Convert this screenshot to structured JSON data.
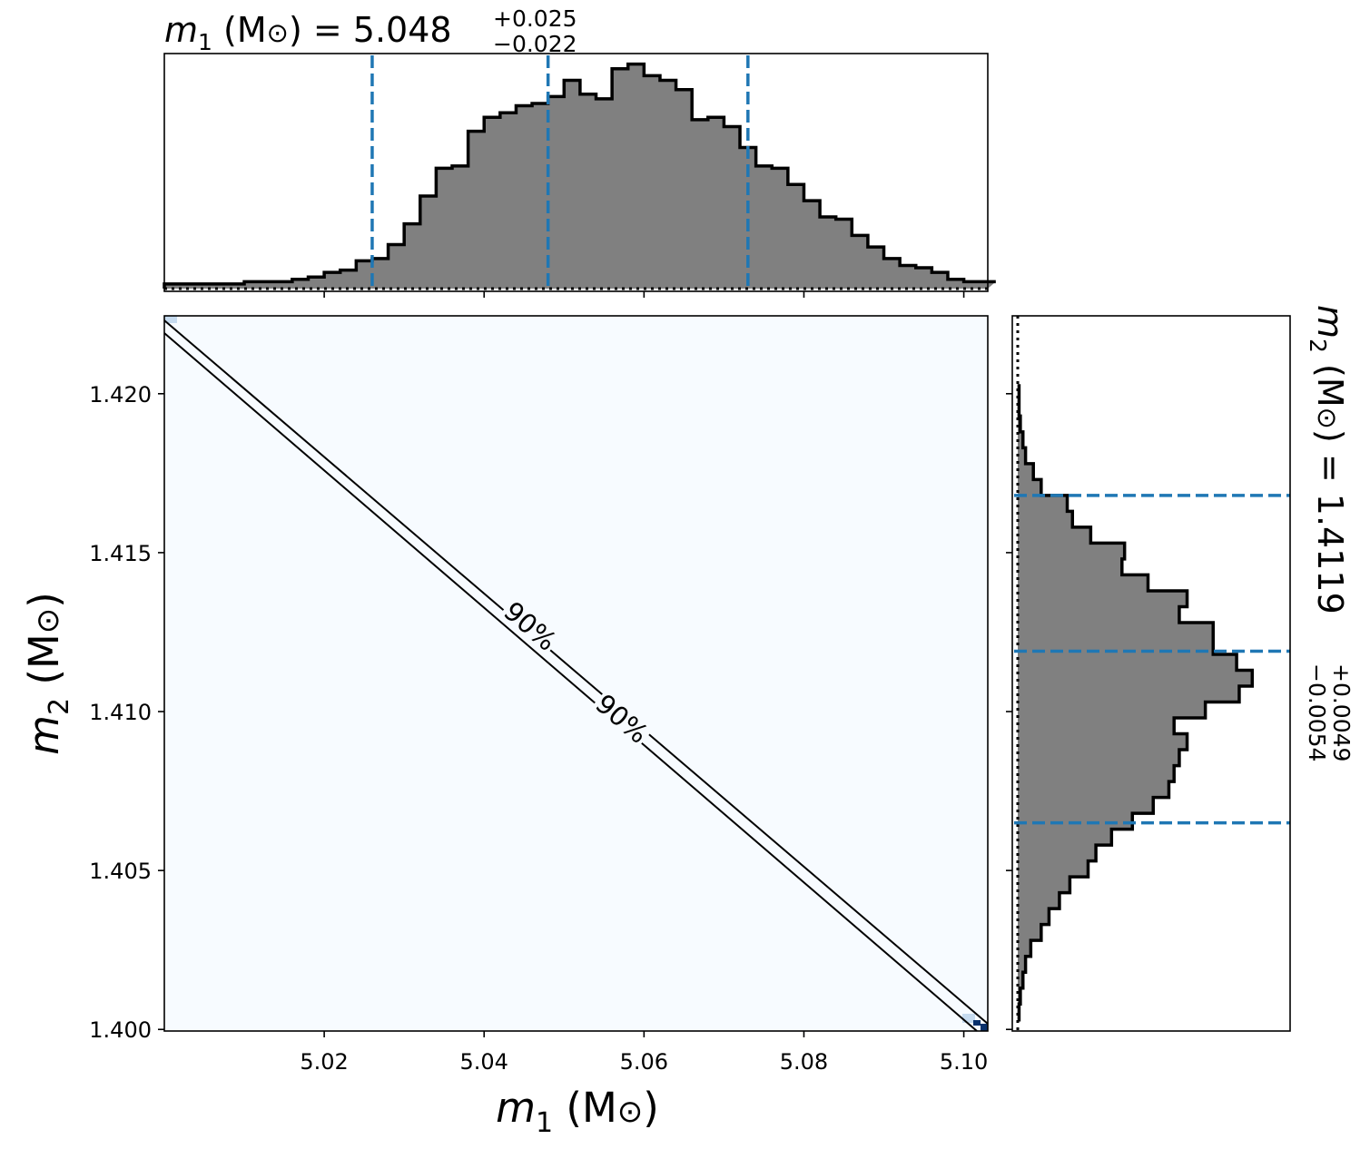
{
  "chart_data": [
    {
      "type": "area",
      "panel": "m1-marginal",
      "title": {
        "symbol": "m",
        "sub": "1",
        "unit": " (M",
        "unit_sym": "⊙",
        "close": ")",
        "eq": " = 5.048",
        "plus": "+0.025",
        "minus": "−0.022"
      },
      "xlim": [
        5.0,
        5.103
      ],
      "bins_start": 5.0,
      "bin_width": 0.002,
      "values": [
        2,
        2,
        2,
        2,
        2,
        3,
        3,
        3,
        4,
        5,
        7,
        8,
        12,
        13,
        19,
        28,
        40,
        52,
        53,
        68,
        74,
        76,
        79,
        80,
        83,
        90,
        84,
        82,
        95,
        97,
        92,
        90,
        86,
        73,
        74,
        70,
        61,
        53,
        52,
        45,
        38,
        31,
        30,
        23,
        18,
        13,
        10,
        9,
        7,
        4,
        3,
        3
      ],
      "quantiles": [
        5.026,
        5.048,
        5.073
      ],
      "ymax": 100
    },
    {
      "type": "area",
      "panel": "m2-marginal",
      "title": {
        "symbol": "m",
        "sub": "2",
        "unit": " (M",
        "unit_sym": "⊙",
        "close": ")",
        "eq": " = 1.4119",
        "plus": "+0.0049",
        "minus": "−0.0054"
      },
      "ylim": [
        1.39995,
        1.42245
      ],
      "bins_start": 1.4003,
      "bin_width": 0.0005,
      "values": [
        0.5,
        1,
        2,
        3,
        5,
        9,
        12,
        16,
        20,
        27,
        30,
        36,
        44,
        52,
        58,
        60,
        62,
        65,
        60,
        72,
        85,
        90,
        84,
        75,
        75,
        62,
        65,
        50,
        40,
        41,
        28,
        21,
        19,
        9,
        6,
        3,
        2,
        1,
        0.5,
        0.5
      ],
      "quantiles": [
        1.4065,
        1.4119,
        1.4168
      ],
      "xmax": 100
    },
    {
      "type": "heatmap",
      "panel": "joint",
      "xlabel": {
        "symbol": "m",
        "sub": "1",
        "unit": " (M",
        "unit_sym": "⊙",
        "close": ")"
      },
      "ylabel": {
        "symbol": "m",
        "sub": "2",
        "unit": " (M",
        "unit_sym": "⊙",
        "close": ")"
      },
      "xlim": [
        5.0,
        5.103
      ],
      "ylim": [
        1.39995,
        1.42245
      ],
      "xticks": [
        "5.02",
        "5.04",
        "5.06",
        "5.08",
        "5.10"
      ],
      "xtick_values": [
        5.02,
        5.04,
        5.06,
        5.08,
        5.1
      ],
      "yticks": [
        "1.400",
        "1.405",
        "1.410",
        "1.415",
        "1.420"
      ],
      "ytick_values": [
        1.4,
        1.405,
        1.41,
        1.415,
        1.42
      ],
      "contour_label": "90%",
      "contour_upper": [
        [
          5.0,
          1.42245
        ],
        [
          5.103,
          1.39995
        ]
      ],
      "contour_lower": [
        [
          5.0,
          1.42225
        ],
        [
          5.103,
          1.39975
        ]
      ],
      "background_color": "#f7fbff",
      "corner_colors": [
        "#c6dbef",
        "#08306b"
      ]
    }
  ],
  "colors": {
    "hist_fill": "#808080",
    "quantile_line": "#1f77b4",
    "outline": "#000000"
  }
}
